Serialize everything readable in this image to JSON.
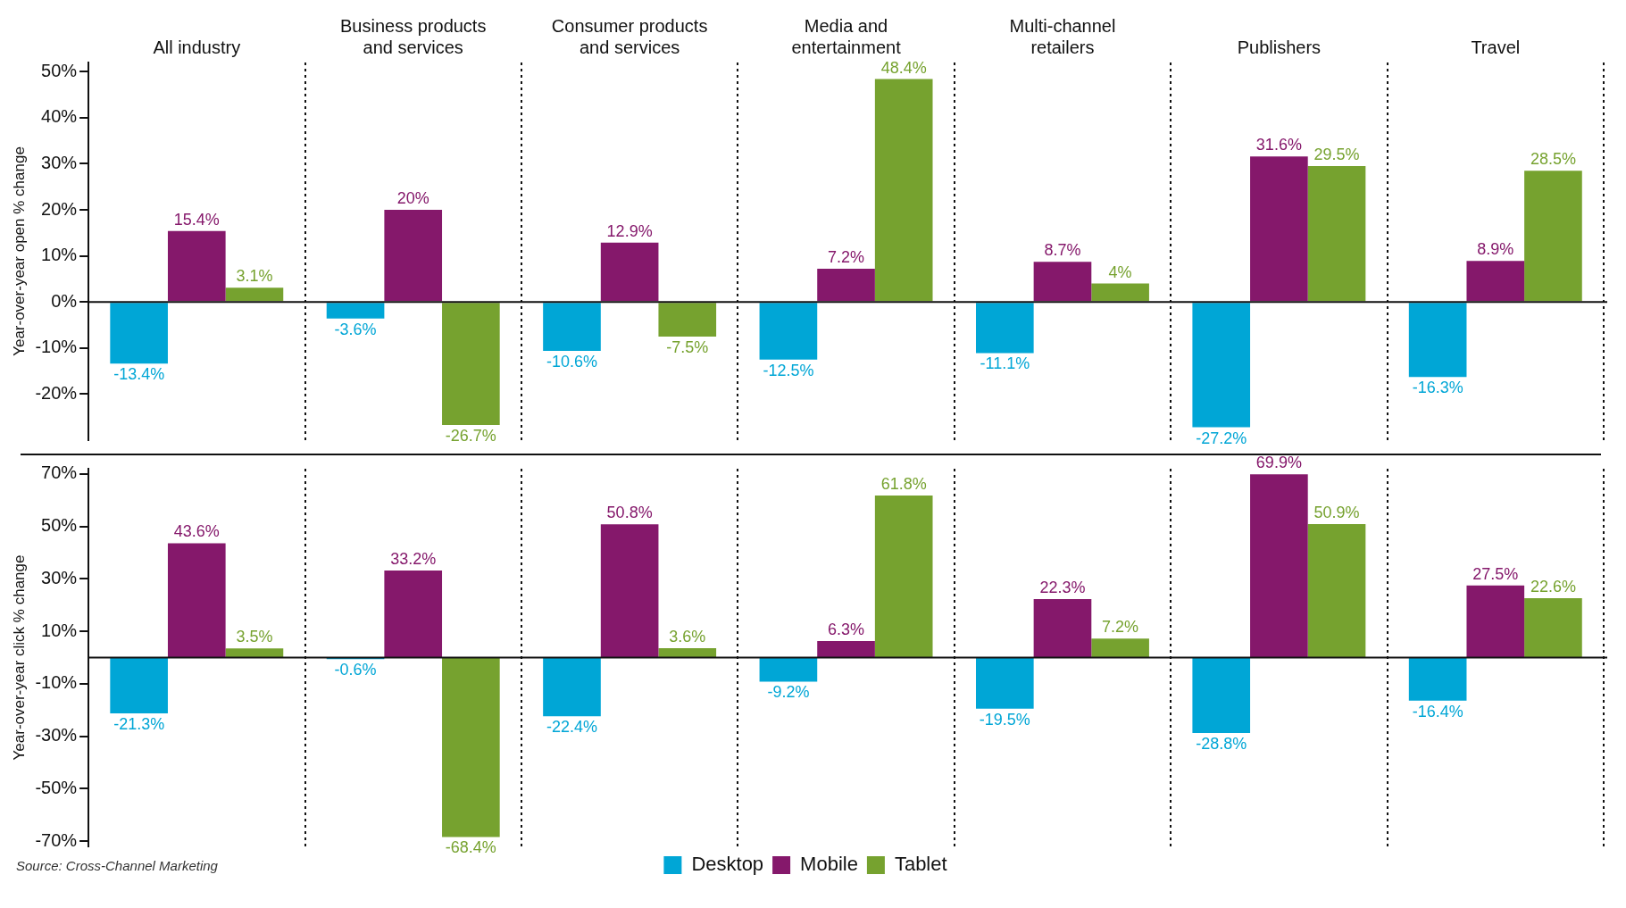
{
  "chart_data": [
    {
      "type": "bar",
      "ylabel": "Year-over-year open % change",
      "categories": [
        "All industry",
        "Business products and services",
        "Consumer products and services",
        "Media and entertainment",
        "Multi-channel retailers",
        "Publishers",
        "Travel"
      ],
      "series": [
        {
          "color": "#00a6d6",
          "values": [
            -13.4,
            -3.6,
            -10.6,
            -12.5,
            -11.1,
            -27.2,
            -16.3
          ],
          "value_labels": [
            "-13.4%",
            "-3.6%",
            "-10.6%",
            "-12.5%",
            "-11.1%",
            "-27.2%",
            "-16.3%"
          ]
        },
        {
          "color": "#85186b",
          "values": [
            15.4,
            20,
            12.9,
            7.2,
            8.7,
            31.6,
            8.9
          ],
          "value_labels": [
            "15.4%",
            "20%",
            "12.9%",
            "7.2%",
            "8.7%",
            "31.6%",
            "8.9%"
          ]
        },
        {
          "color": "#76a22f",
          "values": [
            3.1,
            -26.7,
            -7.5,
            48.4,
            4,
            29.5,
            28.5
          ],
          "value_labels": [
            "3.1%",
            "-26.7%",
            "-7.5%",
            "48.4%",
            "4%",
            "29.5%",
            "28.5%"
          ]
        }
      ],
      "ylim": [
        -30,
        52
      ],
      "yticks": [
        {
          "value": -20,
          "label": "-20%"
        },
        {
          "value": -10,
          "label": "-10%"
        },
        {
          "value": 0,
          "label": "0%"
        },
        {
          "value": 10,
          "label": "10%"
        },
        {
          "value": 20,
          "label": "20%"
        },
        {
          "value": 30,
          "label": "30%"
        },
        {
          "value": 40,
          "label": "40%"
        },
        {
          "value": 50,
          "label": "50%"
        }
      ],
      "grid": "x",
      "legend": false,
      "ref_lines": [
        {
          "axis": "y",
          "value": 0,
          "color": "#111111"
        }
      ]
    },
    {
      "type": "bar",
      "ylabel": "Year-over-year click % change",
      "categories": [
        null,
        null,
        null,
        null,
        null,
        null,
        null
      ],
      "tick_labels": "y",
      "series": [
        {
          "name": "Desktop",
          "color": "#00a6d6",
          "values": [
            -21.3,
            -0.6,
            -22.4,
            -9.2,
            -19.5,
            -28.8,
            -16.4
          ],
          "value_labels": [
            "-21.3%",
            "-0.6%",
            "-22.4%",
            "-9.2%",
            "-19.5%",
            "-28.8%",
            "-16.4%"
          ]
        },
        {
          "name": "Mobile",
          "color": "#85186b",
          "values": [
            43.6,
            33.2,
            50.8,
            6.3,
            22.3,
            69.9,
            27.5
          ],
          "value_labels": [
            "43.6%",
            "33.2%",
            "50.8%",
            "6.3%",
            "22.3%",
            "69.9%",
            "27.5%"
          ]
        },
        {
          "name": "Tablet",
          "color": "#76a22f",
          "values": [
            3.5,
            -68.4,
            3.6,
            61.8,
            7.2,
            50.9,
            22.6
          ],
          "value_labels": [
            "3.5%",
            "-68.4%",
            "3.6%",
            "61.8%",
            "7.2%",
            "50.9%",
            "22.6%"
          ]
        }
      ],
      "ylim": [
        -72,
        72
      ],
      "yticks": [
        {
          "value": -70,
          "label": "-70%"
        },
        {
          "value": -50,
          "label": "-50%"
        },
        {
          "value": -30,
          "label": "-30%"
        },
        {
          "value": -10,
          "label": "-10%"
        },
        {
          "value": 10,
          "label": "10%"
        },
        {
          "value": 30,
          "label": "30%"
        },
        {
          "value": 50,
          "label": "50%"
        },
        {
          "value": 70,
          "label": "70%"
        }
      ],
      "grid": "x",
      "legend": "bottom",
      "ref_lines": [
        {
          "axis": "y",
          "value": 0,
          "color": "#111111"
        }
      ],
      "annotations": [
        "Source: Cross-Channel Marketing"
      ]
    }
  ]
}
